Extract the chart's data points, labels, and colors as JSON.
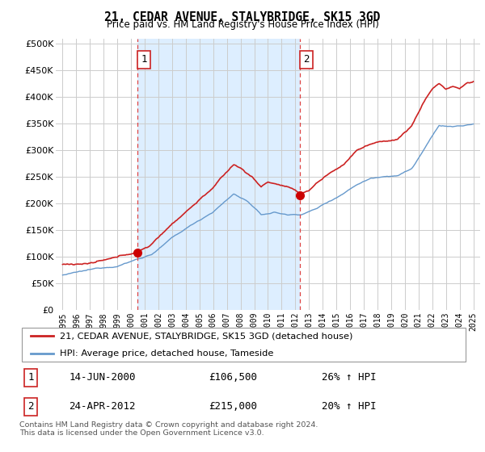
{
  "title": "21, CEDAR AVENUE, STALYBRIDGE, SK15 3GD",
  "subtitle": "Price paid vs. HM Land Registry's House Price Index (HPI)",
  "xlim": [
    1994.5,
    2025.5
  ],
  "ylim": [
    0,
    510000
  ],
  "yticks": [
    0,
    50000,
    100000,
    150000,
    200000,
    250000,
    300000,
    350000,
    400000,
    450000,
    500000
  ],
  "ytick_labels": [
    "£0",
    "£50K",
    "£100K",
    "£150K",
    "£200K",
    "£250K",
    "£300K",
    "£350K",
    "£400K",
    "£450K",
    "£500K"
  ],
  "xticks": [
    1995,
    1996,
    1997,
    1998,
    1999,
    2000,
    2001,
    2002,
    2003,
    2004,
    2005,
    2006,
    2007,
    2008,
    2009,
    2010,
    2011,
    2012,
    2013,
    2014,
    2015,
    2016,
    2017,
    2018,
    2019,
    2020,
    2021,
    2022,
    2023,
    2024,
    2025
  ],
  "sale1_x": 2000.45,
  "sale1_y": 106500,
  "sale1_label": "1",
  "sale1_date": "14-JUN-2000",
  "sale1_price": "£106,500",
  "sale1_hpi": "26% ↑ HPI",
  "sale2_x": 2012.32,
  "sale2_y": 215000,
  "sale2_label": "2",
  "sale2_date": "24-APR-2012",
  "sale2_price": "£215,000",
  "sale2_hpi": "20% ↑ HPI",
  "line1_color": "#cc2222",
  "line2_color": "#6699cc",
  "vline_color": "#dd4444",
  "dot_color": "#cc0000",
  "shade_color": "#ddeeff",
  "legend1": "21, CEDAR AVENUE, STALYBRIDGE, SK15 3GD (detached house)",
  "legend2": "HPI: Average price, detached house, Tameside",
  "footnote": "Contains HM Land Registry data © Crown copyright and database right 2024.\nThis data is licensed under the Open Government Licence v3.0.",
  "background_color": "#ffffff",
  "grid_color": "#cccccc"
}
